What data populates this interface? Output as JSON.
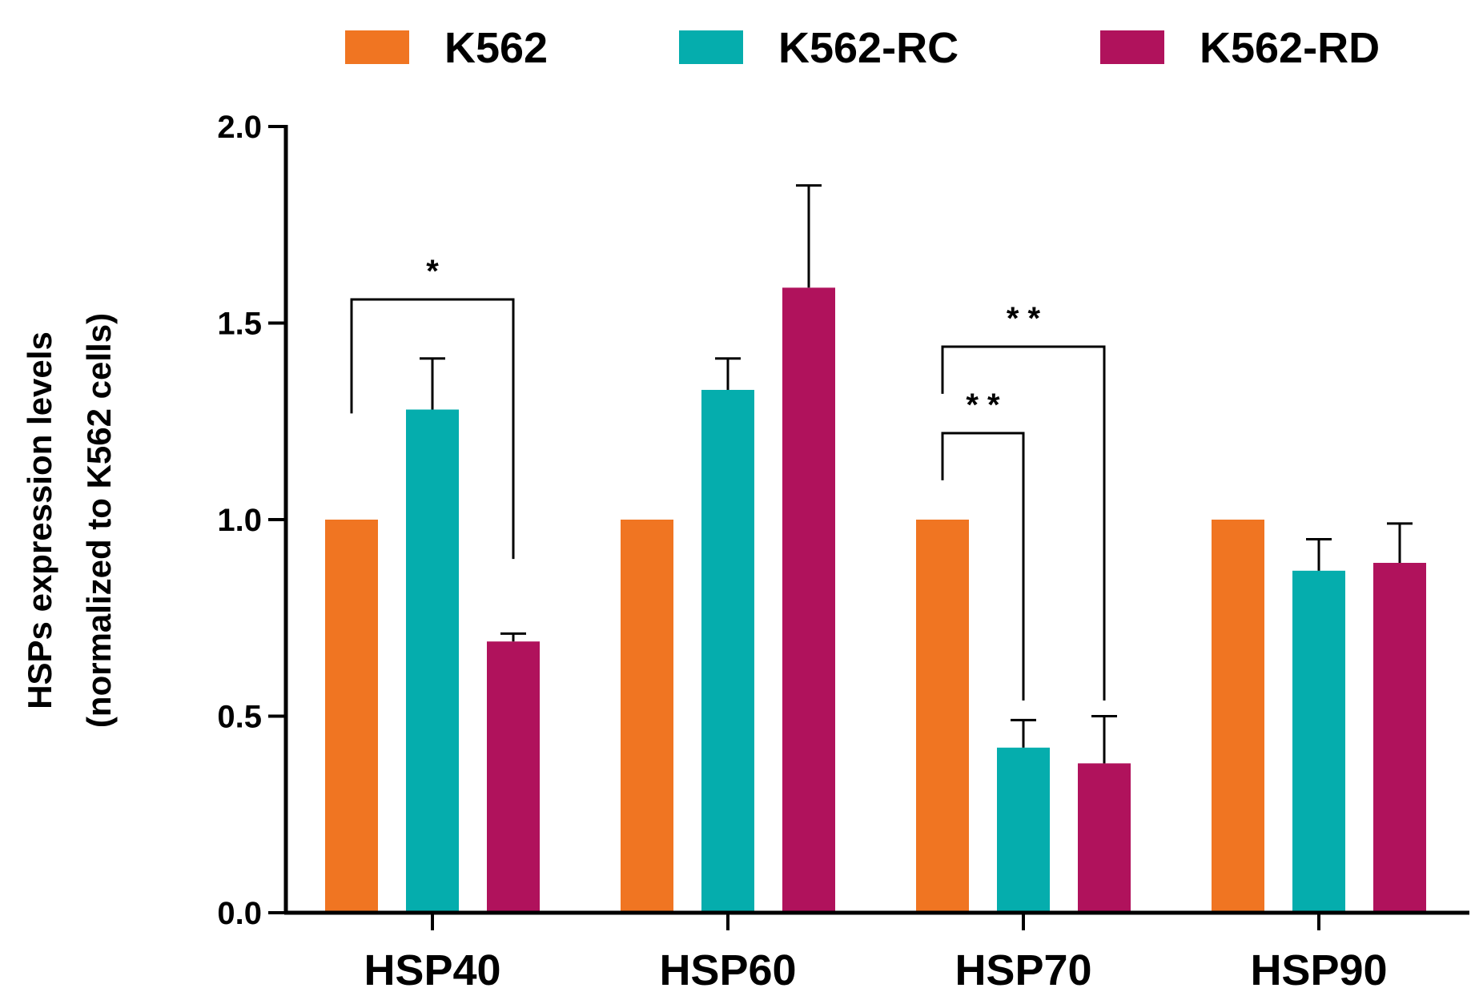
{
  "chart_data": {
    "type": "bar",
    "title": "",
    "xlabel": "",
    "ylabel": {
      "line1": "HSPs expression levels",
      "line2": "(normalized to K562 cells)"
    },
    "ylim": [
      0,
      2.0
    ],
    "yticks": [
      {
        "value": 0.0,
        "label": "0.0"
      },
      {
        "value": 0.5,
        "label": "0.5"
      },
      {
        "value": 1.0,
        "label": "1.0"
      },
      {
        "value": 1.5,
        "label": "1.5"
      },
      {
        "value": 2.0,
        "label": "2.0"
      }
    ],
    "categories": [
      "HSP40",
      "HSP60",
      "HSP70",
      "HSP90"
    ],
    "series": [
      {
        "name": "K562",
        "color": "#F07522",
        "values": [
          1.0,
          1.0,
          1.0,
          1.0
        ],
        "errors": [
          0,
          0,
          0,
          0
        ]
      },
      {
        "name": "K562-RC",
        "color": "#05ADAD",
        "values": [
          1.28,
          1.33,
          0.42,
          0.87
        ],
        "errors": [
          0.13,
          0.08,
          0.07,
          0.08
        ]
      },
      {
        "name": "K562-RD",
        "color": "#B0125C",
        "values": [
          0.69,
          1.59,
          0.38,
          0.89
        ],
        "errors": [
          0.02,
          0.26,
          0.12,
          0.1
        ]
      }
    ],
    "legend_position": "top",
    "grid": false,
    "annotations": [
      {
        "category": "HSP40",
        "from_series": 0,
        "to_series": 2,
        "label": "*",
        "bracket_value": 1.56,
        "left_end_value": 1.27,
        "right_end_value": 0.9
      },
      {
        "category": "HSP70",
        "from_series": 0,
        "to_series": 1,
        "label": "* *",
        "bracket_value": 1.22,
        "left_end_value": 1.1,
        "right_end_value": 0.54
      },
      {
        "category": "HSP70",
        "from_series": 0,
        "to_series": 2,
        "label": "* *",
        "bracket_value": 1.44,
        "left_end_value": 1.32,
        "right_end_value": 0.54
      }
    ]
  }
}
